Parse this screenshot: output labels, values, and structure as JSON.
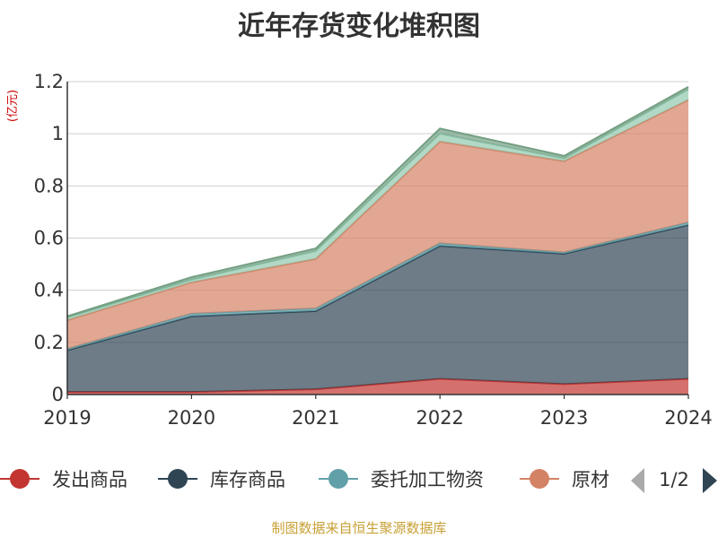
{
  "chart_data": {
    "type": "area",
    "title": "近年存货变化堆积图",
    "ylabel": "(亿元)",
    "xlabel": "",
    "categories": [
      "2019",
      "2020",
      "2021",
      "2022",
      "2023",
      "2024"
    ],
    "ylim": [
      0,
      1.2
    ],
    "yticks": [
      "0",
      "0.2",
      "0.4",
      "0.6",
      "0.8",
      "1",
      "1.2"
    ],
    "grid": true,
    "stacked": true,
    "series": [
      {
        "name": "发出商品",
        "color": "#c23531",
        "values": [
          0.01,
          0.01,
          0.02,
          0.06,
          0.04,
          0.06
        ]
      },
      {
        "name": "库存商品",
        "color": "#2f4554",
        "values": [
          0.16,
          0.29,
          0.3,
          0.51,
          0.5,
          0.59
        ]
      },
      {
        "name": "委托加工物资",
        "color": "#61a0a8",
        "values": [
          0.005,
          0.01,
          0.01,
          0.01,
          0.005,
          0.01
        ]
      },
      {
        "name": "原材料",
        "color": "#d48265",
        "values": [
          0.11,
          0.12,
          0.19,
          0.39,
          0.35,
          0.47
        ]
      },
      {
        "name": "",
        "color": "#91c7ae",
        "values": [
          0.01,
          0.01,
          0.03,
          0.03,
          0.01,
          0.04
        ]
      },
      {
        "name": "",
        "color": "#749f83",
        "values": [
          0.005,
          0.01,
          0.01,
          0.02,
          0.01,
          0.01
        ]
      }
    ],
    "legend": {
      "placement": "bottom",
      "visible_items": [
        "发出商品",
        "库存商品",
        "委托加工物资",
        "原材"
      ],
      "page_indicator": "1/2"
    }
  },
  "source_text": "制图数据来自恒生聚源数据库"
}
